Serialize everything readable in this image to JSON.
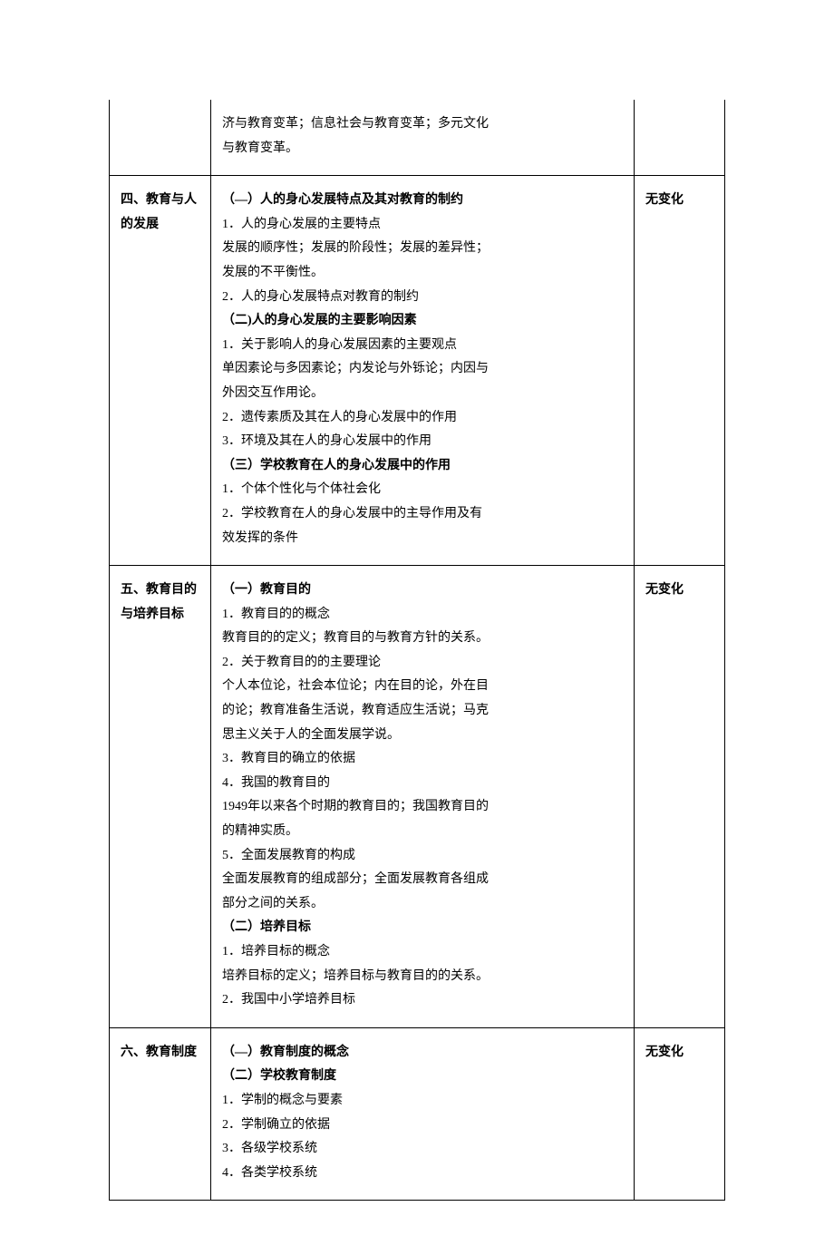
{
  "rows": [
    {
      "col1": "",
      "col2_lines": [
        {
          "text": "济与教育变革；信息社会与教育变革；多元文化",
          "bold": false
        },
        {
          "text": "与教育变革。",
          "bold": false
        }
      ],
      "col3": "",
      "continued": true
    },
    {
      "col1": "四、教育与人的发展",
      "col2_lines": [
        {
          "text": "（—）人的身心发展特点及其对教育的制约",
          "bold": true
        },
        {
          "text": "1．人的身心发展的主要特点",
          "bold": false
        },
        {
          "text": "发展的顺序性；发展的阶段性；发展的差异性；",
          "bold": false
        },
        {
          "text": "发展的不平衡性。",
          "bold": false
        },
        {
          "text": "2．人的身心发展特点对教育的制约",
          "bold": false
        },
        {
          "text": "（二)人的身心发展的主要影响因素",
          "bold": true
        },
        {
          "text": "1．关于影响人的身心发展因素的主要观点",
          "bold": false
        },
        {
          "text": "单因素论与多因素论；内发论与外铄论；内因与",
          "bold": false
        },
        {
          "text": "外因交互作用论。",
          "bold": false
        },
        {
          "text": "2．遗传素质及其在人的身心发展中的作用",
          "bold": false
        },
        {
          "text": "3．环境及其在人的身心发展中的作用",
          "bold": false
        },
        {
          "text": "（三）学校教育在人的身心发展中的作用",
          "bold": true
        },
        {
          "text": "1．个体个性化与个体社会化",
          "bold": false
        },
        {
          "text": "2．学校教育在人的身心发展中的主导作用及有",
          "bold": false
        },
        {
          "text": "效发挥的条件",
          "bold": false
        }
      ],
      "col3": "无变化",
      "continued": false
    },
    {
      "col1": "五、教育目的与培养目标",
      "col2_lines": [
        {
          "text": "（一）教育目的",
          "bold": true
        },
        {
          "text": "1．教育目的的概念",
          "bold": false
        },
        {
          "text": "教育目的的定义；教育目的与教育方针的关系。",
          "bold": false
        },
        {
          "text": "2．关于教育目的的主要理论",
          "bold": false
        },
        {
          "text": "个人本位论，社会本位论；内在目的论，外在目",
          "bold": false
        },
        {
          "text": "的论；教育准备生活说，教育适应生活说；马克",
          "bold": false
        },
        {
          "text": "思主义关于人的全面发展学说。",
          "bold": false
        },
        {
          "text": "3．教育目的确立的依据",
          "bold": false
        },
        {
          "text": "4．我国的教育目的",
          "bold": false
        },
        {
          "text": "1949年以来各个时期的教育目的；我国教育目的",
          "bold": false
        },
        {
          "text": "的精神实质。",
          "bold": false
        },
        {
          "text": "5．全面发展教育的构成",
          "bold": false
        },
        {
          "text": "全面发展教育的组成部分；全面发展教育各组成",
          "bold": false
        },
        {
          "text": "部分之间的关系。",
          "bold": false
        },
        {
          "text": "（二）培养目标",
          "bold": true
        },
        {
          "text": "1．培养目标的概念",
          "bold": false
        },
        {
          "text": "培养目标的定义；培养目标与教育目的的关系。",
          "bold": false
        },
        {
          "text": "2．我国中小学培养目标",
          "bold": false
        }
      ],
      "col3": "无变化",
      "continued": false
    },
    {
      "col1": "六、教育制度",
      "col2_lines": [
        {
          "text": "（—）教育制度的概念",
          "bold": true
        },
        {
          "text": "（二）学校教育制度",
          "bold": true
        },
        {
          "text": "1．学制的概念与要素",
          "bold": false
        },
        {
          "text": "2．学制确立的依据",
          "bold": false
        },
        {
          "text": "3．各级学校系统",
          "bold": false
        },
        {
          "text": "4．各类学校系统",
          "bold": false
        }
      ],
      "col3": "无变化",
      "continued": false
    }
  ]
}
